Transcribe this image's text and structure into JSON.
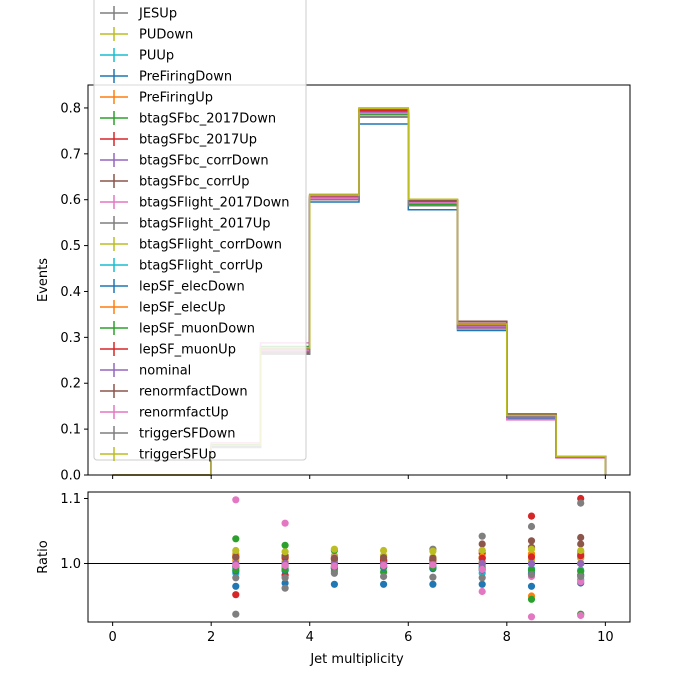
{
  "chart_data": [
    {
      "type": "line",
      "step": true,
      "ylabel": "Events",
      "xlim": [
        -0.5,
        10.5
      ],
      "ylim": [
        0.0,
        0.85
      ],
      "yticks": [
        0.0,
        0.1,
        0.2,
        0.3,
        0.4,
        0.5,
        0.6,
        0.7,
        0.8
      ],
      "ytick_labels": [
        "0.0",
        "0.1",
        "0.2",
        "0.3",
        "0.4",
        "0.5",
        "0.6",
        "0.7",
        "0.8"
      ],
      "bin_edges": [
        0,
        1,
        2,
        3,
        4,
        5,
        6,
        7,
        8,
        9,
        10
      ],
      "legend_position": "top-left",
      "series": [
        {
          "name": "JESUp",
          "color": "#7f7f7f",
          "values": [
            0.0,
            0.0,
            0.064,
            0.274,
            0.605,
            0.788,
            0.593,
            0.326,
            0.128,
            0.04
          ]
        },
        {
          "name": "PUDown",
          "color": "#bcbd22",
          "values": [
            0.0,
            0.0,
            0.065,
            0.275,
            0.612,
            0.8,
            0.6,
            0.328,
            0.13,
            0.04
          ]
        },
        {
          "name": "PUUp",
          "color": "#17becf",
          "values": [
            0.0,
            0.0,
            0.063,
            0.27,
            0.6,
            0.785,
            0.59,
            0.32,
            0.127,
            0.039
          ]
        },
        {
          "name": "PreFiringDown",
          "color": "#1f77b4",
          "values": [
            0.0,
            0.0,
            0.062,
            0.265,
            0.595,
            0.765,
            0.578,
            0.315,
            0.123,
            0.038
          ]
        },
        {
          "name": "PreFiringUp",
          "color": "#ff7f0e",
          "values": [
            0.0,
            0.0,
            0.064,
            0.273,
            0.605,
            0.79,
            0.593,
            0.324,
            0.128,
            0.04
          ]
        },
        {
          "name": "btagSFbc_2017Down",
          "color": "#2ca02c",
          "values": [
            0.0,
            0.0,
            0.066,
            0.28,
            0.61,
            0.78,
            0.598,
            0.328,
            0.128,
            0.04
          ]
        },
        {
          "name": "btagSFbc_2017Up",
          "color": "#d62728",
          "values": [
            0.0,
            0.0,
            0.061,
            0.268,
            0.602,
            0.793,
            0.596,
            0.33,
            0.132,
            0.041
          ]
        },
        {
          "name": "btagSFbc_corrDown",
          "color": "#9467bd",
          "values": [
            0.0,
            0.0,
            0.064,
            0.273,
            0.606,
            0.79,
            0.594,
            0.325,
            0.128,
            0.04
          ]
        },
        {
          "name": "btagSFbc_corrUp",
          "color": "#8c564b",
          "values": [
            0.0,
            0.0,
            0.064,
            0.272,
            0.604,
            0.792,
            0.597,
            0.334,
            0.131,
            0.041
          ]
        },
        {
          "name": "btagSFlight_2017Down",
          "color": "#e377c2",
          "values": [
            0.0,
            0.0,
            0.07,
            0.288,
            0.61,
            0.795,
            0.598,
            0.318,
            0.12,
            0.037
          ]
        },
        {
          "name": "btagSFlight_2017Up",
          "color": "#7f7f7f",
          "values": [
            0.0,
            0.0,
            0.06,
            0.263,
            0.6,
            0.787,
            0.597,
            0.335,
            0.133,
            0.041
          ]
        },
        {
          "name": "btagSFlight_corrDown",
          "color": "#bcbd22",
          "values": [
            0.0,
            0.0,
            0.065,
            0.276,
            0.61,
            0.795,
            0.599,
            0.328,
            0.129,
            0.04
          ]
        },
        {
          "name": "btagSFlight_corrUp",
          "color": "#17becf",
          "values": [
            0.0,
            0.0,
            0.064,
            0.271,
            0.603,
            0.786,
            0.592,
            0.323,
            0.127,
            0.039
          ]
        },
        {
          "name": "lepSF_elecDown",
          "color": "#1f77b4",
          "values": [
            0.0,
            0.0,
            0.063,
            0.27,
            0.601,
            0.785,
            0.589,
            0.321,
            0.126,
            0.039
          ]
        },
        {
          "name": "lepSF_elecUp",
          "color": "#ff7f0e",
          "values": [
            0.0,
            0.0,
            0.065,
            0.276,
            0.609,
            0.796,
            0.598,
            0.327,
            0.129,
            0.04
          ]
        },
        {
          "name": "lepSF_muonDown",
          "color": "#2ca02c",
          "values": [
            0.0,
            0.0,
            0.063,
            0.271,
            0.601,
            0.786,
            0.59,
            0.322,
            0.126,
            0.039
          ]
        },
        {
          "name": "lepSF_muonUp",
          "color": "#d62728",
          "values": [
            0.0,
            0.0,
            0.065,
            0.275,
            0.609,
            0.795,
            0.597,
            0.327,
            0.129,
            0.04
          ]
        },
        {
          "name": "nominal",
          "color": "#9467bd",
          "values": [
            0.0,
            0.0,
            0.064,
            0.273,
            0.605,
            0.79,
            0.594,
            0.325,
            0.128,
            0.04
          ]
        },
        {
          "name": "renormfactDown",
          "color": "#8c564b",
          "values": [
            0.0,
            0.0,
            0.065,
            0.276,
            0.61,
            0.797,
            0.599,
            0.335,
            0.133,
            0.041
          ]
        },
        {
          "name": "renormfactUp",
          "color": "#e377c2",
          "values": [
            0.0,
            0.0,
            0.064,
            0.272,
            0.603,
            0.788,
            0.593,
            0.322,
            0.125,
            0.038
          ]
        },
        {
          "name": "triggerSFDown",
          "color": "#7f7f7f",
          "values": [
            0.0,
            0.0,
            0.063,
            0.269,
            0.6,
            0.781,
            0.587,
            0.321,
            0.126,
            0.039
          ]
        },
        {
          "name": "triggerSFUp",
          "color": "#bcbd22",
          "values": [
            0.0,
            0.0,
            0.065,
            0.277,
            0.61,
            0.799,
            0.601,
            0.329,
            0.13,
            0.041
          ]
        }
      ]
    },
    {
      "type": "scatter",
      "xlabel": "Jet multiplicity",
      "ylabel": "Ratio",
      "xlim": [
        -0.5,
        10.5
      ],
      "ylim": [
        0.91,
        1.11
      ],
      "xticks": [
        0,
        2,
        4,
        6,
        8,
        10
      ],
      "xtick_labels": [
        "0",
        "2",
        "4",
        "6",
        "8",
        "10"
      ],
      "yticks": [
        1.0,
        1.1
      ],
      "ytick_labels": [
        "1.0",
        "1.1"
      ],
      "reference_line": 1.0,
      "x": [
        2.5,
        3.5,
        4.5,
        5.5,
        6.5,
        7.5,
        8.5,
        9.5
      ],
      "series": [
        {
          "name": "JESUp",
          "color": "#7f7f7f",
          "values": [
            0.995,
            0.998,
            1.0,
            0.999,
            0.999,
            1.002,
            1.0,
            1.0
          ]
        },
        {
          "name": "PUDown",
          "color": "#bcbd22",
          "values": [
            1.015,
            1.01,
            1.012,
            1.012,
            1.01,
            1.01,
            1.012,
            1.01
          ]
        },
        {
          "name": "PUUp",
          "color": "#17becf",
          "values": [
            0.985,
            0.99,
            0.992,
            0.994,
            0.993,
            0.985,
            0.99,
            0.975
          ]
        },
        {
          "name": "PreFiringDown",
          "color": "#1f77b4",
          "values": [
            0.965,
            0.97,
            0.968,
            0.968,
            0.968,
            0.968,
            0.965,
            0.97
          ]
        },
        {
          "name": "PreFiringUp",
          "color": "#ff7f0e",
          "values": [
            1.005,
            1.003,
            1.002,
            1.003,
            1.001,
            0.998,
            0.95,
            1.015
          ]
        },
        {
          "name": "btagSFbc_2017Down",
          "color": "#2ca02c",
          "values": [
            1.038,
            1.028,
            1.02,
            0.987,
            1.005,
            1.008,
            0.945,
            0.922
          ]
        },
        {
          "name": "btagSFbc_2017Up",
          "color": "#d62728",
          "values": [
            0.952,
            0.982,
            0.995,
            1.004,
            1.003,
            1.016,
            1.073,
            1.1
          ]
        },
        {
          "name": "btagSFbc_corrDown",
          "color": "#9467bd",
          "values": [
            1.0,
            1.0,
            1.0,
            1.0,
            1.0,
            1.0,
            1.0,
            1.0
          ]
        },
        {
          "name": "btagSFbc_corrUp",
          "color": "#8c564b",
          "values": [
            0.995,
            0.996,
            0.998,
            1.002,
            1.005,
            1.02,
            1.025,
            1.04
          ]
        },
        {
          "name": "btagSFlight_2017Down",
          "color": "#e377c2",
          "values": [
            1.098,
            1.062,
            1.009,
            1.006,
            1.006,
            0.957,
            0.918,
            0.92
          ]
        },
        {
          "name": "btagSFlight_2017Up",
          "color": "#7f7f7f",
          "values": [
            0.922,
            0.962,
            0.988,
            0.995,
            1.022,
            1.042,
            1.057,
            1.093
          ]
        },
        {
          "name": "btagSFlight_corrDown",
          "color": "#bcbd22",
          "values": [
            1.008,
            1.007,
            1.006,
            1.005,
            1.004,
            1.003,
            1.005,
            1.008
          ]
        },
        {
          "name": "btagSFlight_corrUp",
          "color": "#17becf",
          "values": [
            0.993,
            0.993,
            0.994,
            0.995,
            0.996,
            0.995,
            0.992,
            0.99
          ]
        },
        {
          "name": "lepSF_elecDown",
          "color": "#1f77b4",
          "values": [
            0.988,
            0.989,
            0.993,
            0.994,
            0.992,
            0.99,
            0.985,
            0.982
          ]
        },
        {
          "name": "lepSF_elecUp",
          "color": "#ff7f0e",
          "values": [
            1.012,
            1.011,
            1.007,
            1.006,
            1.008,
            1.01,
            1.015,
            1.018
          ]
        },
        {
          "name": "lepSF_muonDown",
          "color": "#2ca02c",
          "values": [
            0.99,
            0.991,
            0.993,
            0.995,
            0.994,
            0.992,
            0.99,
            0.988
          ]
        },
        {
          "name": "lepSF_muonUp",
          "color": "#d62728",
          "values": [
            1.01,
            1.009,
            1.007,
            1.005,
            1.006,
            1.008,
            1.01,
            1.012
          ]
        },
        {
          "name": "nominal",
          "color": "#9467bd",
          "values": [
            1.0,
            1.0,
            1.0,
            1.0,
            1.0,
            1.0,
            1.0,
            1.0
          ]
        },
        {
          "name": "renormfactDown",
          "color": "#8c564b",
          "values": [
            1.01,
            1.012,
            1.008,
            1.009,
            1.008,
            1.03,
            1.035,
            1.03
          ]
        },
        {
          "name": "renormfactUp",
          "color": "#e377c2",
          "values": [
            0.997,
            0.997,
            0.996,
            0.997,
            0.998,
            0.991,
            0.98,
            0.972
          ]
        },
        {
          "name": "triggerSFDown",
          "color": "#7f7f7f",
          "values": [
            0.978,
            0.978,
            0.985,
            0.98,
            0.979,
            0.978,
            0.983,
            0.98
          ]
        },
        {
          "name": "triggerSFUp",
          "color": "#bcbd22",
          "values": [
            1.02,
            1.018,
            1.022,
            1.02,
            1.019,
            1.02,
            1.022,
            1.02
          ]
        }
      ]
    }
  ]
}
